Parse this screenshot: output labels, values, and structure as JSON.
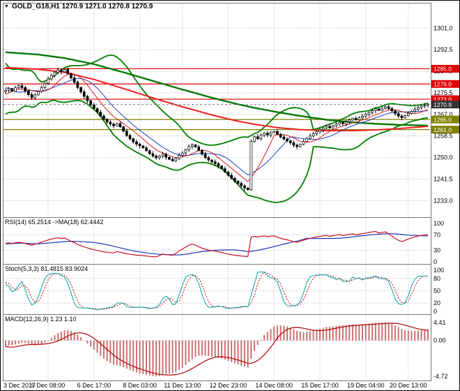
{
  "window": {
    "title": "GOLD_G18,H1 1270.9 1271.0 1270.8 1270.9"
  },
  "icons": {
    "collapse_glyph": "▼"
  },
  "colors": {
    "background": "#ffffff",
    "grid": "#b8b8b8",
    "frame": "#777777",
    "candle": "#000000",
    "text": "#000000",
    "tag_text": "#ffffff"
  },
  "chart_data": {
    "type": "candlestick",
    "title": "GOLD_G18,H1",
    "quote": {
      "open": 1270.9,
      "high": 1271.0,
      "low": 1270.8,
      "close": 1270.9
    },
    "x_labels": [
      {
        "label": "3 Dec 2017",
        "i": 0
      },
      {
        "label": "5 Dec 08:00",
        "i": 13
      },
      {
        "label": "6 Dec 17:00",
        "i": 27
      },
      {
        "label": "8 Dec 03:00",
        "i": 41
      },
      {
        "label": "11 Dec 13:00",
        "i": 54
      },
      {
        "label": "12 Dec 23:00",
        "i": 68
      },
      {
        "label": "14 Dec 08:00",
        "i": 82
      },
      {
        "label": "15 Dec 17:00",
        "i": 96
      },
      {
        "label": "19 Dec 04:00",
        "i": 110
      },
      {
        "label": "20 Dec 13:00",
        "i": 123
      }
    ],
    "main": {
      "ylim": [
        1226.5,
        1311.0
      ],
      "yticks": [
        "1301.0",
        "1292.5",
        "1284.0",
        "1275.5",
        "1267.0",
        "1258.5",
        "1250.0",
        "1241.5",
        "1233.0"
      ],
      "grid_on": true,
      "pre_closes": [
        1282.0,
        1286.0,
        1288.0,
        1284.0,
        1278.0,
        1272.0,
        1268.5,
        1271.0,
        1276.0,
        1281.0,
        1285.0,
        1287.0,
        1283.0,
        1277.0,
        1271.5,
        1269.0,
        1272.0,
        1276.0,
        1280.0,
        1284.0,
        1286.0,
        1282.0,
        1277.0,
        1272.5,
        1270.5,
        1273.0,
        1276.0,
        1278.0,
        1276.5,
        1276.0
      ],
      "closes": [
        1276.5,
        1277.2,
        1276.1,
        1277.5,
        1278.3,
        1277.6,
        1276.2,
        1274.8,
        1273.6,
        1274.7,
        1276.0,
        1277.6,
        1279.3,
        1281.0,
        1282.4,
        1283.6,
        1284.5,
        1283.8,
        1284.7,
        1283.1,
        1281.4,
        1279.7,
        1277.6,
        1275.9,
        1274.1,
        1272.4,
        1270.7,
        1269.3,
        1267.9,
        1266.4,
        1265.1,
        1264.0,
        1263.2,
        1262.5,
        1263.4,
        1262.1,
        1260.4,
        1258.7,
        1257.4,
        1256.2,
        1255.3,
        1254.6,
        1253.8,
        1252.7,
        1251.5,
        1250.6,
        1249.9,
        1250.6,
        1251.3,
        1250.1,
        1249.3,
        1248.7,
        1249.6,
        1250.9,
        1251.8,
        1253.1,
        1254.3,
        1255.0,
        1254.2,
        1252.8,
        1251.3,
        1250.0,
        1249.0,
        1248.3,
        1247.6,
        1246.7,
        1245.6,
        1244.3,
        1243.0,
        1241.8,
        1240.7,
        1239.8,
        1238.9,
        1238.0,
        1237.3,
        1256.4,
        1258.2,
        1257.4,
        1258.8,
        1259.6,
        1258.9,
        1259.8,
        1260.3,
        1259.2,
        1258.1,
        1257.3,
        1256.6,
        1255.8,
        1254.9,
        1254.3,
        1255.2,
        1256.4,
        1257.6,
        1258.5,
        1259.4,
        1260.2,
        1260.9,
        1261.6,
        1262.3,
        1261.7,
        1262.5,
        1263.2,
        1263.9,
        1263.3,
        1264.1,
        1264.8,
        1265.4,
        1264.9,
        1265.7,
        1266.3,
        1267.0,
        1267.8,
        1268.5,
        1269.2,
        1268.6,
        1269.4,
        1270.0,
        1269.3,
        1268.4,
        1267.3,
        1266.4,
        1265.7,
        1266.5,
        1267.4,
        1268.2,
        1269.0,
        1269.7,
        1270.3,
        1270.6,
        1270.9
      ],
      "bollinger": {
        "period": 20,
        "deviation": 2,
        "color": "#008000",
        "width": 1.8
      },
      "ma_fast": {
        "period": 8,
        "color": "#d02020",
        "width": 1
      },
      "ma_mid": {
        "period": 13,
        "color": "#2040c0",
        "width": 1
      },
      "trend_red": {
        "color": "#ee2020",
        "width": 2,
        "anchors": [
          [
            0,
            1285.5
          ],
          [
            10,
            1284.8
          ],
          [
            18,
            1283.6
          ],
          [
            27,
            1280.8
          ],
          [
            36,
            1277.2
          ],
          [
            45,
            1273.5
          ],
          [
            54,
            1270.0
          ],
          [
            63,
            1266.8
          ],
          [
            70,
            1264.6
          ],
          [
            76,
            1263.1
          ],
          [
            83,
            1261.8
          ],
          [
            90,
            1261.0
          ],
          [
            98,
            1260.6
          ],
          [
            106,
            1260.6
          ],
          [
            113,
            1260.9
          ],
          [
            120,
            1261.4
          ],
          [
            129,
            1262.3
          ]
        ]
      },
      "trend_green": {
        "color": "#067806",
        "width": 2.4,
        "anchors": [
          [
            0,
            1291.5
          ],
          [
            10,
            1290.6
          ],
          [
            18,
            1289.2
          ],
          [
            27,
            1286.8
          ],
          [
            36,
            1283.6
          ],
          [
            45,
            1280.2
          ],
          [
            54,
            1276.8
          ],
          [
            63,
            1273.6
          ],
          [
            70,
            1271.3
          ],
          [
            76,
            1269.6
          ],
          [
            83,
            1267.9
          ],
          [
            90,
            1266.4
          ],
          [
            98,
            1264.9
          ],
          [
            106,
            1263.9
          ],
          [
            113,
            1263.3
          ],
          [
            120,
            1262.9
          ],
          [
            129,
            1262.6
          ]
        ]
      },
      "levels": [
        {
          "value": 1285.0,
          "label": "1285.0",
          "color": "#dd0000",
          "kind": "resistance"
        },
        {
          "value": 1279.0,
          "label": "1279.0",
          "color": "#dd0000",
          "kind": "resistance"
        },
        {
          "value": 1273.0,
          "label": "1273.0",
          "color": "#dd0000",
          "kind": "resistance"
        },
        {
          "value": 1265.0,
          "label": "1265.0",
          "color": "#808000",
          "kind": "support"
        },
        {
          "value": 1261.0,
          "label": "1261.0",
          "color": "#808000",
          "kind": "support"
        }
      ],
      "current_price": {
        "value": 1270.9,
        "label": "1270.9",
        "line_color": "#777777",
        "tag_color": "#333333"
      }
    },
    "rsi": {
      "label": "RSI(14) 65.2514 ->MA(18) 62.4442",
      "period": 14,
      "ma_period": 18,
      "value": 65.2514,
      "ma_value": 62.4442,
      "yticks": [
        "100",
        "70",
        "30",
        "0"
      ],
      "levels": [
        70,
        30
      ],
      "line_color": "#cc1020",
      "ma_color": "#2233bb"
    },
    "stoch": {
      "label": "Stoch(5,3,3) 81.4815 83.9024",
      "k_period": 5,
      "d_period": 3,
      "slowing": 3,
      "k_value": 81.4815,
      "d_value": 83.9024,
      "yticks": [
        "100",
        "80",
        "50",
        "20",
        "0"
      ],
      "levels": [
        80,
        50,
        20
      ],
      "k_color": "#00a5a5",
      "d_color": "#cc0000"
    },
    "macd": {
      "label": "MACD(12,26,9) 1.23 1.10",
      "fast": 12,
      "slow": 26,
      "signal": 9,
      "value": 1.23,
      "signal_value": 1.1,
      "ytick_labels": [
        "4.41",
        "0.00",
        "-4.72"
      ],
      "hist_color": "#cc7070",
      "signal_color": "#b00000"
    }
  }
}
